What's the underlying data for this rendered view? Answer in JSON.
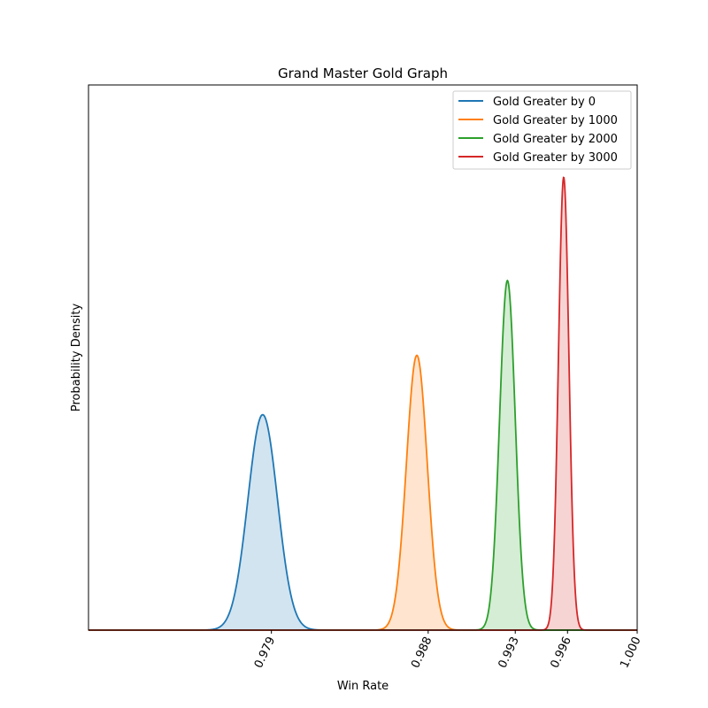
{
  "chart_data": {
    "type": "line",
    "title": "Grand Master Gold Graph",
    "xlabel": "Win Rate",
    "ylabel": "Probability Density",
    "xlim": [
      0.9685,
      1.0
    ],
    "ylim": [
      0,
      1.24
    ],
    "x_ticks": [
      0.979,
      0.988,
      0.993,
      0.996,
      1.0
    ],
    "x_tick_labels": [
      "0.979",
      "0.988",
      "0.993",
      "0.996",
      "1.000"
    ],
    "x_tick_rotation": -65,
    "y_ticks_shown": false,
    "grid": false,
    "legend_position": "top-right",
    "fill_under_curves": true,
    "series": [
      {
        "name": "Gold Greater by 0",
        "color": "#1f77b4",
        "mean": 0.9785,
        "sd": 0.00085,
        "peak": 0.49
      },
      {
        "name": "Gold Greater by 1000",
        "color": "#ff7f0e",
        "mean": 0.98735,
        "sd": 0.0006,
        "peak": 0.625
      },
      {
        "name": "Gold Greater by 2000",
        "color": "#2ca02c",
        "mean": 0.99255,
        "sd": 0.00045,
        "peak": 0.795
      },
      {
        "name": "Gold Greater by 3000",
        "color": "#d62728",
        "mean": 0.99578,
        "sd": 0.0003,
        "peak": 1.03
      }
    ]
  }
}
